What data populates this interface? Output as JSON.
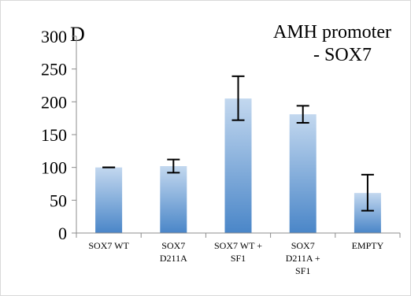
{
  "chart_data": {
    "type": "bar",
    "panel_label": "D",
    "title_lines": [
      "AMH promoter",
      "- SOX7"
    ],
    "categories": [
      [
        "SOX7 WT"
      ],
      [
        "SOX7",
        "D211A"
      ],
      [
        "SOX7 WT +",
        "SF1"
      ],
      [
        "SOX7",
        "D211A +",
        "SF1"
      ],
      [
        "EMPTY"
      ]
    ],
    "values": [
      100,
      102,
      205,
      181,
      61
    ],
    "error_low": [
      100,
      92,
      172,
      168,
      34
    ],
    "error_high": [
      100,
      112,
      239,
      194,
      89
    ],
    "yticks": [
      0,
      50,
      100,
      150,
      200,
      250,
      300
    ],
    "ylim": [
      0,
      300
    ],
    "xlabel": "",
    "ylabel": "",
    "legend": "none",
    "grid": false,
    "colors": {
      "bar_light": "#c3d8ef",
      "bar_dark": "#4a86c8",
      "axis": "#8c8c8c",
      "frame": "#d9d9d9"
    }
  }
}
